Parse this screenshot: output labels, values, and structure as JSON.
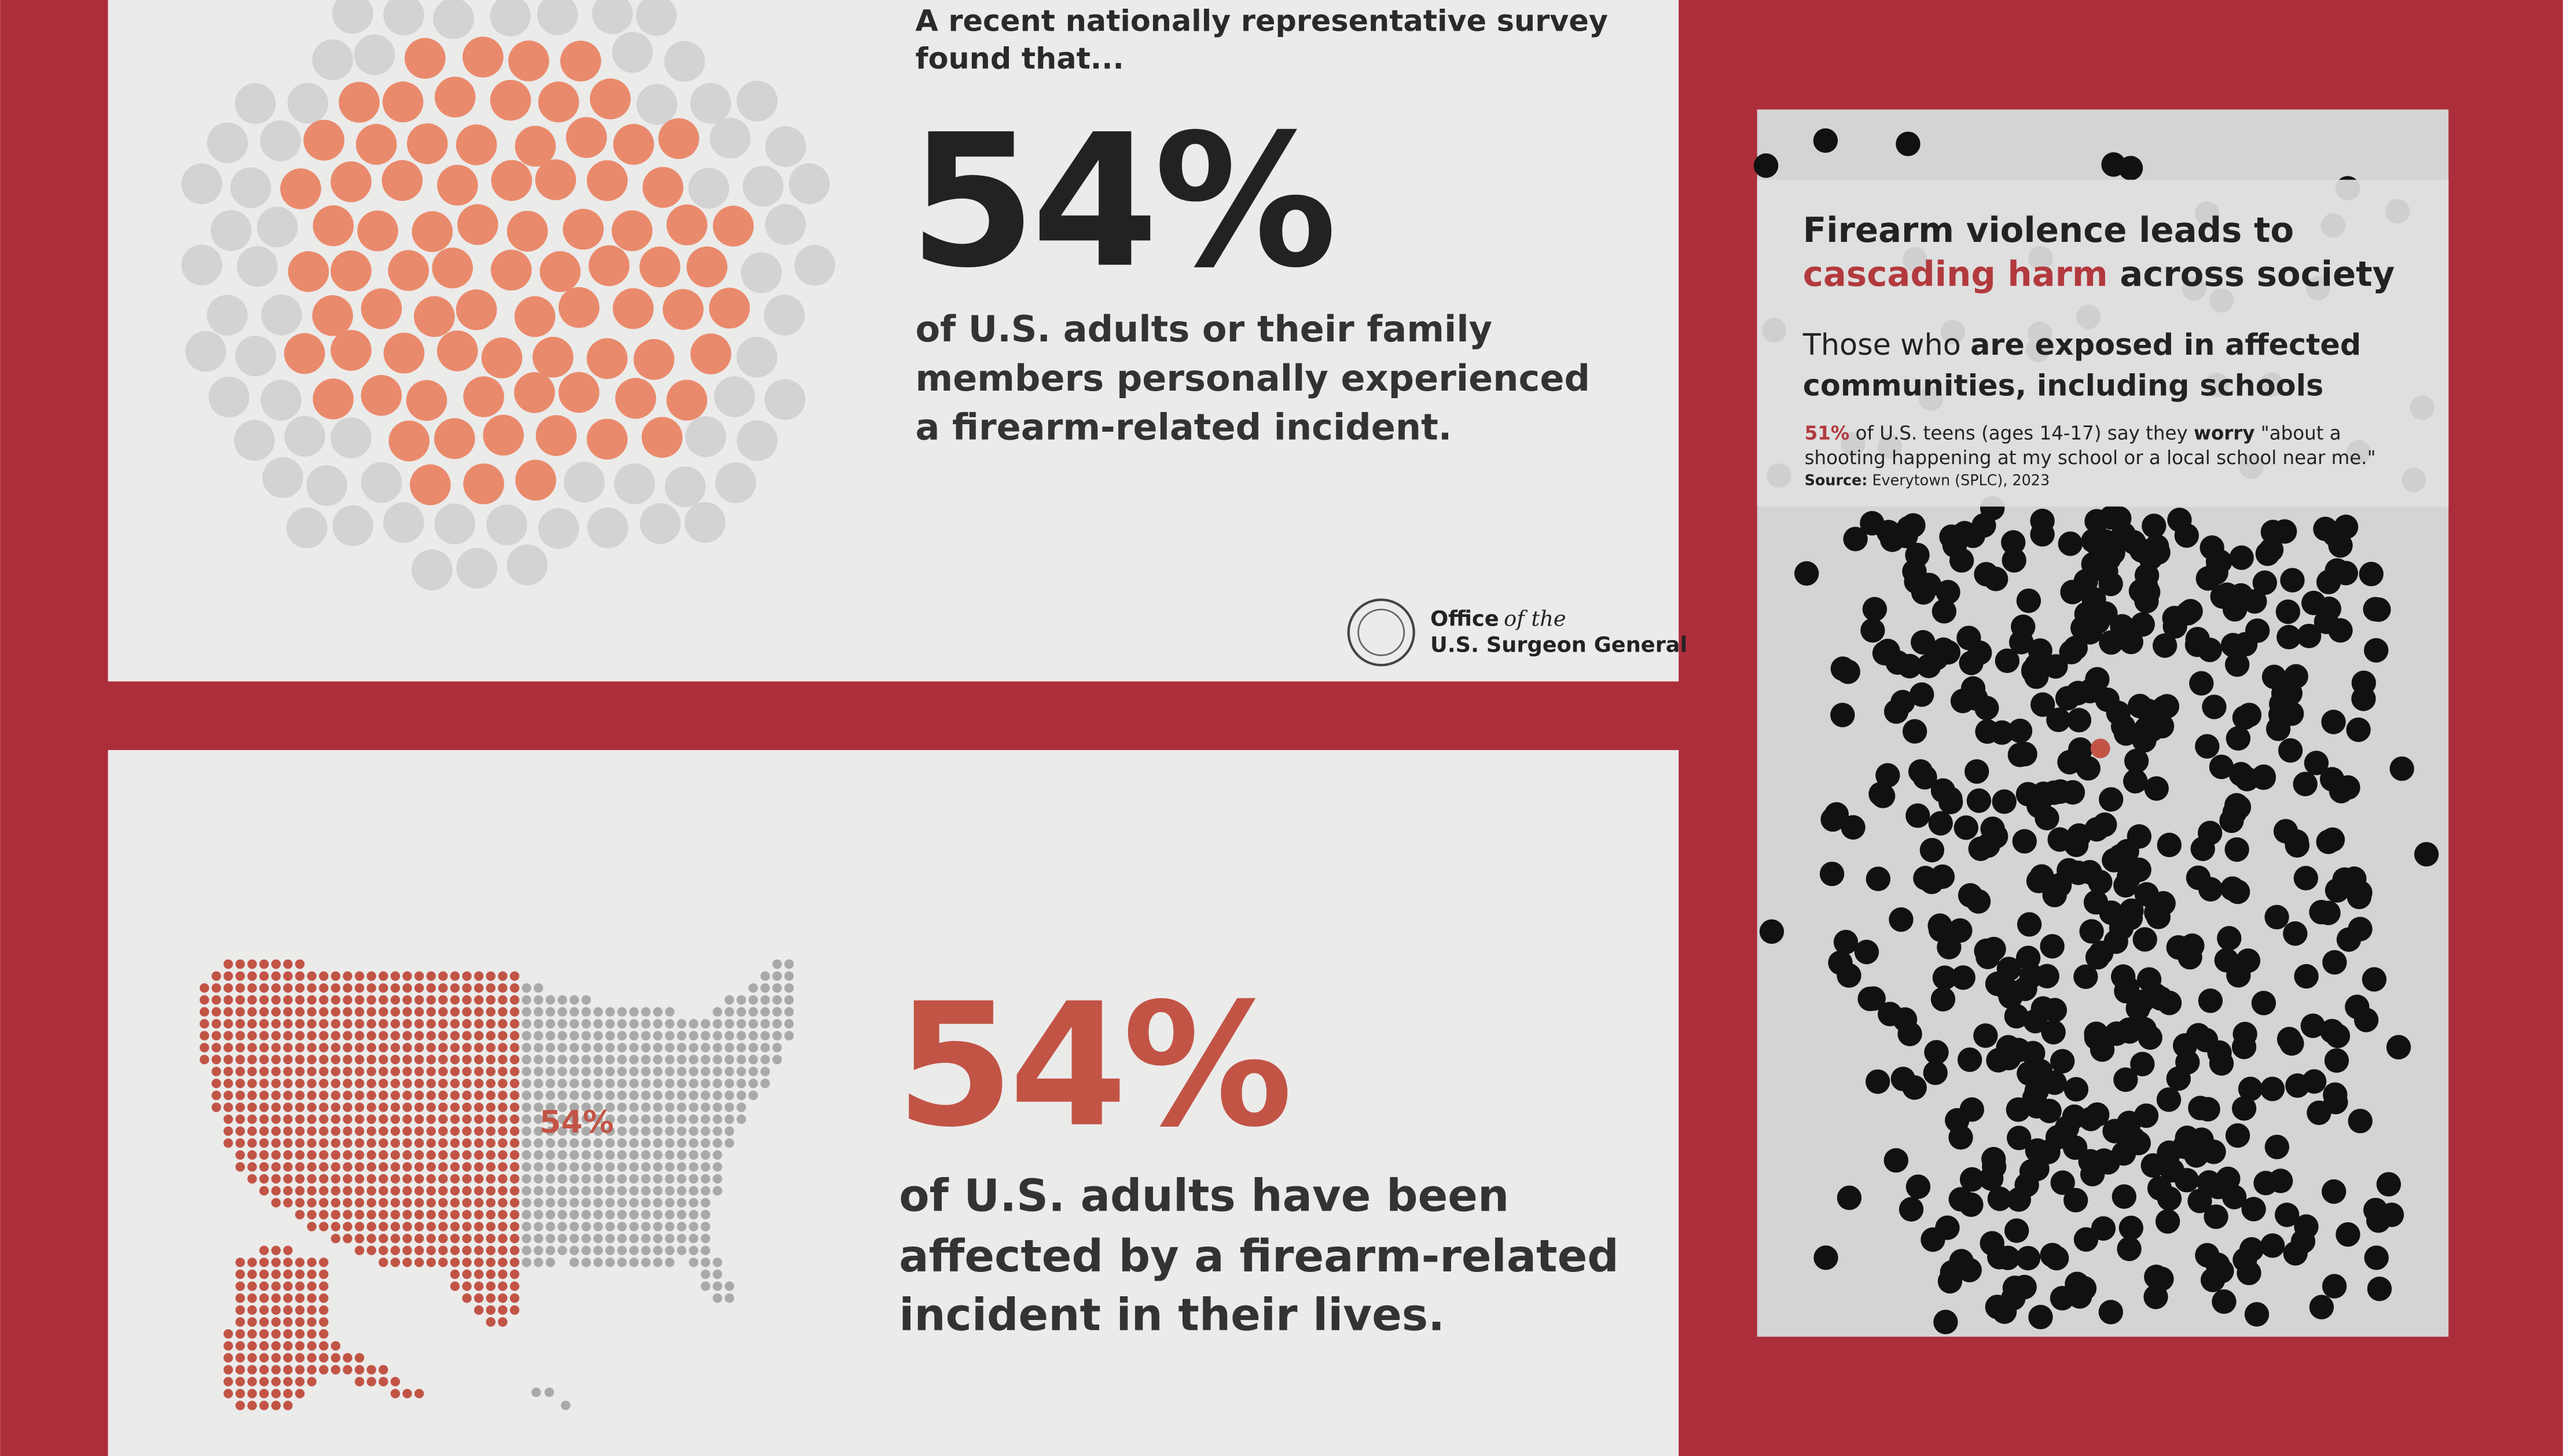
{
  "panels": [
    {
      "intro": [
        "A recent nationally representative survey",
        "found that..."
      ],
      "stat": "54%",
      "body": [
        "of U.S. adults or their family",
        "members personally experienced",
        "a firearm-related incident."
      ],
      "logo": {
        "office": "Office",
        "of_the": "of the",
        "name": "U.S. Surgeon General"
      }
    },
    {
      "map_label": "54%",
      "stat": "54%",
      "body": [
        "of U.S. adults have been",
        "affected by a firearm-related",
        "incident in their lives."
      ]
    },
    {
      "title": {
        "line1": "Firearm violence leads to",
        "highlight": "cascading harm",
        "rest": " across society"
      },
      "subtitle": {
        "lead": "Those who ",
        "bold1": "are exposed in affected",
        "line2": "communities, including schools"
      },
      "note": {
        "pct": "51%",
        "part1": " of U.S. teens (ages 14-17) say they ",
        "bold": "worry",
        "part2": " \"about a",
        "line2": "shooting happening at my school or a local school near me.\""
      },
      "source": {
        "label": "Source:",
        "text": " Everytown (SPLC), 2023"
      }
    }
  ]
}
